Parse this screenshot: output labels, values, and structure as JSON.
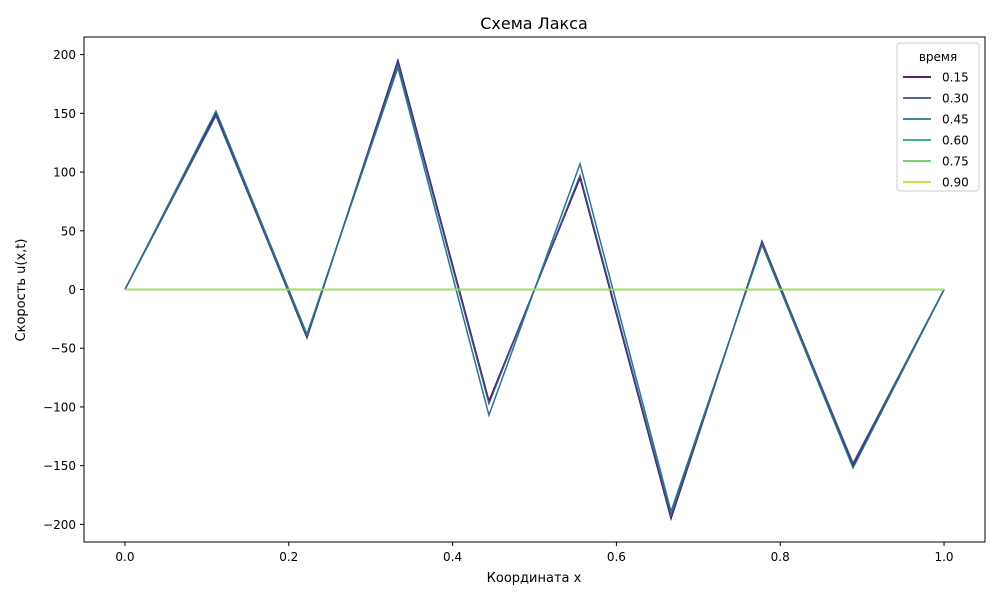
{
  "chart_data": {
    "type": "line",
    "title": "Схема Лакса",
    "xlabel": "Координата x",
    "ylabel": "Скорость u(x,t)",
    "xlim": [
      -0.05,
      1.05
    ],
    "ylim": [
      -215,
      215
    ],
    "xticks": [
      0.0,
      0.2,
      0.4,
      0.6,
      0.8,
      1.0
    ],
    "xtick_labels": [
      "0.0",
      "0.2",
      "0.4",
      "0.6",
      "0.8",
      "1.0"
    ],
    "yticks": [
      -200,
      -150,
      -100,
      -50,
      0,
      50,
      100,
      150,
      200
    ],
    "ytick_labels": [
      "−200",
      "−150",
      "−100",
      "−50",
      "0",
      "50",
      "100",
      "150",
      "200"
    ],
    "grid": false,
    "legend": {
      "title": "время",
      "position": "top-right"
    },
    "x": [
      0.0,
      0.1111,
      0.2222,
      0.3333,
      0.4444,
      0.5556,
      0.6667,
      0.7778,
      0.8889,
      1.0
    ],
    "series": [
      {
        "name": "0.15",
        "color": "#440154",
        "values": [
          0,
          150,
          -41,
          195,
          -95,
          95,
          -195,
          41,
          -150,
          0
        ]
      },
      {
        "name": "0.30",
        "color": "#3b528b",
        "values": [
          0,
          148,
          -40,
          193,
          -97,
          97,
          -193,
          40,
          -148,
          0
        ]
      },
      {
        "name": "0.45",
        "color": "#2c728e",
        "values": [
          0,
          152,
          -38,
          189,
          -107,
          107,
          -189,
          38,
          -152,
          0
        ]
      },
      {
        "name": "0.60",
        "color": "#21a585",
        "values": [
          0,
          0,
          0,
          0,
          0,
          0,
          0,
          0,
          0,
          0
        ]
      },
      {
        "name": "0.75",
        "color": "#5ec962",
        "values": [
          0,
          0,
          0,
          0,
          0,
          0,
          0,
          0,
          0,
          0
        ]
      },
      {
        "name": "0.90",
        "color": "#bddf26",
        "values": [
          0,
          0,
          0,
          0,
          0,
          0,
          0,
          0,
          0,
          0
        ]
      }
    ]
  }
}
